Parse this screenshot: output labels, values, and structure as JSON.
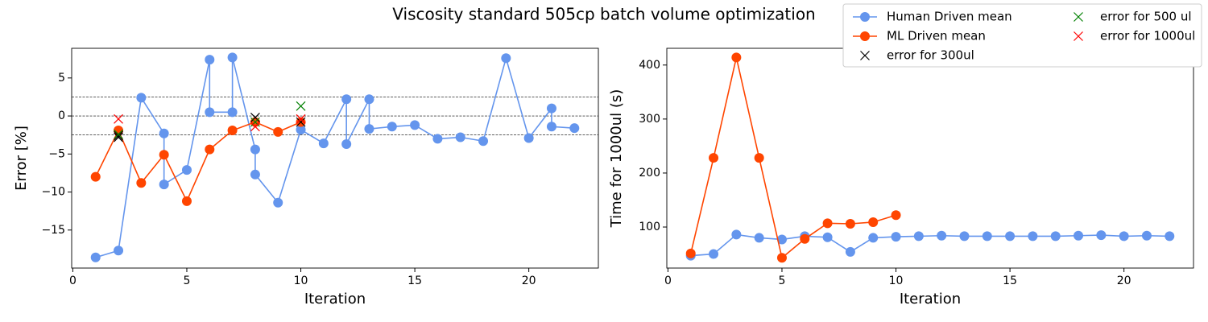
{
  "title": "Viscosity standard 505cp batch volume optimization",
  "legend_columns": 2,
  "chart_data": [
    {
      "type": "line",
      "xlabel": "Iteration",
      "ylabel": "Error [%]",
      "xlim": [
        -0.05,
        23.05
      ],
      "xticks": [
        0,
        5,
        10,
        15,
        20
      ],
      "ylim": [
        -20,
        8.9
      ],
      "yticks": [
        {
          "value": -15,
          "label": "−15"
        },
        {
          "value": -10,
          "label": "−10"
        },
        {
          "value": -5,
          "label": "−5"
        },
        0,
        5
      ],
      "hlines": [
        2.5,
        0,
        -2.5
      ],
      "series": [
        {
          "name": "Human Driven mean",
          "color": "#6495ed",
          "marker": "o",
          "x": [
            1,
            2,
            3,
            4,
            4,
            5,
            6,
            6,
            7,
            7,
            8,
            8,
            9,
            10,
            11,
            12,
            12,
            13,
            13,
            14,
            15,
            16,
            17,
            18,
            19,
            20,
            21,
            21,
            22
          ],
          "values": [
            -18.6,
            -17.7,
            2.4,
            -2.3,
            -9.0,
            -7.1,
            7.4,
            0.5,
            0.5,
            7.7,
            -4.4,
            -7.7,
            -11.4,
            -1.8,
            -3.6,
            2.2,
            -3.7,
            2.2,
            -1.7,
            -1.4,
            -1.2,
            -3.0,
            -2.8,
            -3.3,
            7.6,
            -2.9,
            1.0,
            -1.4,
            -1.6
          ]
        },
        {
          "name": "ML Driven mean",
          "color": "#ff4500",
          "marker": "o",
          "x": [
            1,
            2,
            3,
            4,
            5,
            6,
            7,
            8,
            9,
            10
          ],
          "values": [
            -8.0,
            -1.9,
            -8.8,
            -5.1,
            -11.2,
            -4.4,
            -1.9,
            -0.8,
            -2.1,
            -0.8
          ]
        },
        {
          "name": "error for 300ul",
          "color": "#000000",
          "marker": "x",
          "x": [
            2,
            2,
            8,
            10
          ],
          "values": [
            -2.6,
            -2.8,
            -0.2,
            -0.8
          ]
        },
        {
          "name": "error for 500 ul",
          "color": "#008000",
          "marker": "x",
          "x": [
            2,
            8,
            10
          ],
          "values": [
            -2.4,
            -0.8,
            1.3
          ]
        },
        {
          "name": "error for 1000ul",
          "color": "#ff0000",
          "marker": "x",
          "x": [
            2,
            8,
            10
          ],
          "values": [
            -0.4,
            -1.4,
            -0.4
          ]
        }
      ]
    },
    {
      "type": "line",
      "xlabel": "Iteration",
      "ylabel": "Time for 1000ul (s)",
      "xlim": [
        -0.05,
        23.05
      ],
      "xticks": [
        0,
        5,
        10,
        15,
        20
      ],
      "ylim": [
        24,
        431
      ],
      "yticks": [
        100,
        200,
        300,
        400
      ],
      "series": [
        {
          "color": "#6495ed",
          "marker": "o",
          "x": [
            1,
            2,
            3,
            4,
            5,
            6,
            7,
            8,
            9,
            10,
            11,
            12,
            13,
            14,
            15,
            16,
            17,
            18,
            19,
            20,
            21,
            22
          ],
          "values": [
            47,
            50,
            86,
            80,
            77,
            83,
            81,
            54,
            80,
            82,
            83,
            84,
            83,
            83,
            83,
            83,
            83,
            84,
            85,
            83,
            84,
            83
          ]
        },
        {
          "color": "#ff4500",
          "marker": "o",
          "x": [
            1,
            2,
            3,
            4,
            5,
            6,
            7,
            8,
            9,
            10
          ],
          "values": [
            51,
            228,
            414,
            228,
            43,
            78,
            107,
            106,
            109,
            122
          ]
        }
      ]
    }
  ]
}
